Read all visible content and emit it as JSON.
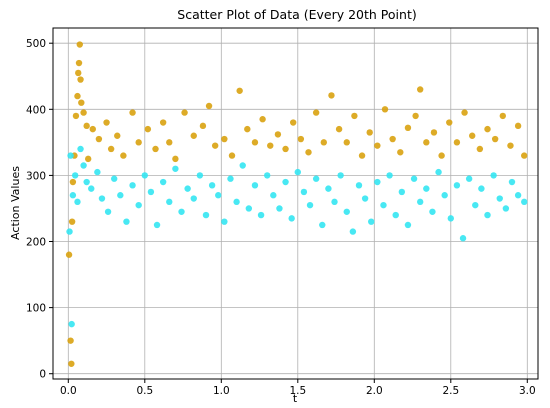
{
  "chart_data": {
    "type": "scatter",
    "title": "Scatter Plot of Data (Every 20th Point)",
    "xlabel": "t",
    "ylabel": "Action  Values",
    "xlim": [
      -0.1,
      3.07
    ],
    "ylim": [
      -8,
      523
    ],
    "xticks": [
      "0.0",
      "0.5",
      "1.0",
      "1.5",
      "2.0",
      "2.5",
      "3.0"
    ],
    "xtick_values": [
      0.0,
      0.5,
      1.0,
      1.5,
      2.0,
      2.5,
      3.0
    ],
    "yticks": [
      "0",
      "100",
      "200",
      "300",
      "400",
      "500"
    ],
    "ytick_values": [
      0,
      100,
      200,
      300,
      400,
      500
    ],
    "grid": true,
    "series": [
      {
        "color": "#d9a20f",
        "points": [
          [
            0.005,
            180
          ],
          [
            0.015,
            50
          ],
          [
            0.02,
            15
          ],
          [
            0.025,
            230
          ],
          [
            0.03,
            290
          ],
          [
            0.04,
            330
          ],
          [
            0.05,
            390
          ],
          [
            0.06,
            420
          ],
          [
            0.065,
            455
          ],
          [
            0.07,
            470
          ],
          [
            0.075,
            498
          ],
          [
            0.08,
            445
          ],
          [
            0.085,
            410
          ],
          [
            0.1,
            395
          ],
          [
            0.12,
            375
          ],
          [
            0.13,
            325
          ],
          [
            0.16,
            370
          ],
          [
            0.2,
            355
          ],
          [
            0.25,
            380
          ],
          [
            0.28,
            340
          ],
          [
            0.32,
            360
          ],
          [
            0.36,
            330
          ],
          [
            0.42,
            395
          ],
          [
            0.46,
            350
          ],
          [
            0.52,
            370
          ],
          [
            0.57,
            340
          ],
          [
            0.62,
            380
          ],
          [
            0.66,
            350
          ],
          [
            0.7,
            325
          ],
          [
            0.76,
            395
          ],
          [
            0.82,
            360
          ],
          [
            0.88,
            375
          ],
          [
            0.92,
            405
          ],
          [
            0.96,
            345
          ],
          [
            1.02,
            355
          ],
          [
            1.07,
            330
          ],
          [
            1.12,
            428
          ],
          [
            1.17,
            370
          ],
          [
            1.22,
            350
          ],
          [
            1.27,
            385
          ],
          [
            1.32,
            345
          ],
          [
            1.37,
            362
          ],
          [
            1.42,
            340
          ],
          [
            1.47,
            380
          ],
          [
            1.52,
            355
          ],
          [
            1.57,
            335
          ],
          [
            1.62,
            395
          ],
          [
            1.67,
            350
          ],
          [
            1.72,
            421
          ],
          [
            1.77,
            370
          ],
          [
            1.82,
            350
          ],
          [
            1.87,
            390
          ],
          [
            1.92,
            330
          ],
          [
            1.97,
            365
          ],
          [
            2.02,
            345
          ],
          [
            2.07,
            400
          ],
          [
            2.12,
            355
          ],
          [
            2.17,
            335
          ],
          [
            2.22,
            372
          ],
          [
            2.27,
            390
          ],
          [
            2.3,
            430
          ],
          [
            2.34,
            350
          ],
          [
            2.39,
            365
          ],
          [
            2.44,
            330
          ],
          [
            2.49,
            380
          ],
          [
            2.54,
            350
          ],
          [
            2.59,
            395
          ],
          [
            2.64,
            360
          ],
          [
            2.69,
            340
          ],
          [
            2.74,
            370
          ],
          [
            2.79,
            355
          ],
          [
            2.84,
            390
          ],
          [
            2.89,
            345
          ],
          [
            2.94,
            375
          ],
          [
            2.98,
            330
          ]
        ]
      },
      {
        "color": "#34e6f2",
        "points": [
          [
            0.008,
            215
          ],
          [
            0.015,
            330
          ],
          [
            0.022,
            75
          ],
          [
            0.03,
            270
          ],
          [
            0.045,
            300
          ],
          [
            0.06,
            260
          ],
          [
            0.08,
            340
          ],
          [
            0.1,
            315
          ],
          [
            0.12,
            290
          ],
          [
            0.15,
            280
          ],
          [
            0.19,
            305
          ],
          [
            0.22,
            265
          ],
          [
            0.26,
            245
          ],
          [
            0.3,
            295
          ],
          [
            0.34,
            270
          ],
          [
            0.38,
            230
          ],
          [
            0.42,
            285
          ],
          [
            0.46,
            255
          ],
          [
            0.5,
            300
          ],
          [
            0.54,
            275
          ],
          [
            0.58,
            225
          ],
          [
            0.62,
            290
          ],
          [
            0.66,
            260
          ],
          [
            0.7,
            310
          ],
          [
            0.74,
            245
          ],
          [
            0.78,
            280
          ],
          [
            0.82,
            265
          ],
          [
            0.86,
            300
          ],
          [
            0.9,
            240
          ],
          [
            0.94,
            285
          ],
          [
            0.98,
            270
          ],
          [
            1.02,
            230
          ],
          [
            1.06,
            295
          ],
          [
            1.1,
            260
          ],
          [
            1.14,
            315
          ],
          [
            1.18,
            250
          ],
          [
            1.22,
            285
          ],
          [
            1.26,
            240
          ],
          [
            1.3,
            300
          ],
          [
            1.34,
            270
          ],
          [
            1.38,
            250
          ],
          [
            1.42,
            290
          ],
          [
            1.46,
            235
          ],
          [
            1.5,
            305
          ],
          [
            1.54,
            275
          ],
          [
            1.58,
            255
          ],
          [
            1.62,
            295
          ],
          [
            1.66,
            225
          ],
          [
            1.7,
            280
          ],
          [
            1.74,
            260
          ],
          [
            1.78,
            300
          ],
          [
            1.82,
            245
          ],
          [
            1.86,
            215
          ],
          [
            1.9,
            285
          ],
          [
            1.94,
            265
          ],
          [
            1.98,
            230
          ],
          [
            2.02,
            290
          ],
          [
            2.06,
            255
          ],
          [
            2.1,
            300
          ],
          [
            2.14,
            240
          ],
          [
            2.18,
            275
          ],
          [
            2.22,
            225
          ],
          [
            2.26,
            295
          ],
          [
            2.3,
            260
          ],
          [
            2.34,
            280
          ],
          [
            2.38,
            245
          ],
          [
            2.42,
            305
          ],
          [
            2.46,
            270
          ],
          [
            2.5,
            235
          ],
          [
            2.54,
            285
          ],
          [
            2.58,
            205
          ],
          [
            2.62,
            295
          ],
          [
            2.66,
            255
          ],
          [
            2.7,
            280
          ],
          [
            2.74,
            240
          ],
          [
            2.78,
            300
          ],
          [
            2.82,
            265
          ],
          [
            2.86,
            250
          ],
          [
            2.9,
            290
          ],
          [
            2.94,
            270
          ],
          [
            2.98,
            260
          ]
        ]
      }
    ]
  }
}
